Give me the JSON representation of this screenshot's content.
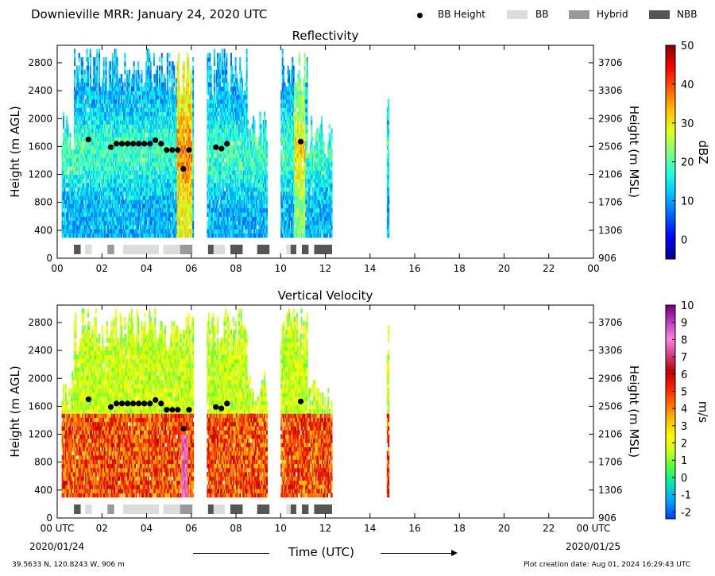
{
  "header": {
    "title": "Downieville MRR:  January 24, 2020 UTC",
    "legend": [
      {
        "label": "BB Height",
        "kind": "dot",
        "color": "#000000"
      },
      {
        "label": "BB",
        "kind": "box",
        "color": "#dcdcdc"
      },
      {
        "label": "Hybrid",
        "kind": "box",
        "color": "#999999"
      },
      {
        "label": "NBB",
        "kind": "box",
        "color": "#555555"
      }
    ]
  },
  "footer": {
    "coords": "39.5633 N, 120.8243 W, 906 m",
    "creation": "Plot creation date: Aug 01, 2024 16:29:43 UTC",
    "time_axis_label": "Time (UTC)",
    "start_date": "2020/01/24",
    "end_date": "2020/01/25"
  },
  "chart_data": [
    {
      "type": "heatmap",
      "title": "Reflectivity",
      "xlabel": "",
      "ylabel": "Height (m AGL)",
      "ylabel_right": "Height (m MSL)",
      "colorbar_label": "dBZ",
      "xlim": [
        0,
        24
      ],
      "ylim": [
        0,
        3050
      ],
      "x_ticks": [
        "00",
        "02",
        "04",
        "06",
        "08",
        "10",
        "12",
        "14",
        "16",
        "18",
        "20",
        "22",
        "00"
      ],
      "y_ticks": [
        0,
        400,
        800,
        1200,
        1600,
        2000,
        2400,
        2800
      ],
      "y_ticks_right": [
        906,
        1306,
        1706,
        2106,
        2506,
        2906,
        3306,
        3706
      ],
      "colorbar_range": [
        -5,
        50
      ],
      "colorbar_ticks": [
        0,
        10,
        20,
        30,
        40,
        50
      ],
      "colorbar_colors": [
        "#00008f",
        "#0000ff",
        "#0060ff",
        "#00c0ff",
        "#20ffdf",
        "#80ff80",
        "#dfff20",
        "#ffc000",
        "#ff6000",
        "#ff0000",
        "#8f0000"
      ],
      "bb_height_points": [
        [
          1.4,
          1700
        ],
        [
          2.4,
          1590
        ],
        [
          2.65,
          1640
        ],
        [
          2.9,
          1640
        ],
        [
          3.15,
          1640
        ],
        [
          3.4,
          1640
        ],
        [
          3.65,
          1640
        ],
        [
          3.9,
          1640
        ],
        [
          4.15,
          1640
        ],
        [
          4.4,
          1690
        ],
        [
          4.65,
          1640
        ],
        [
          4.9,
          1550
        ],
        [
          5.15,
          1550
        ],
        [
          5.4,
          1550
        ],
        [
          5.65,
          1280
        ],
        [
          5.9,
          1550
        ],
        [
          7.1,
          1590
        ],
        [
          7.35,
          1570
        ],
        [
          7.6,
          1640
        ],
        [
          10.9,
          1670
        ]
      ]
    },
    {
      "type": "heatmap",
      "title": "Vertical Velocity",
      "xlabel": "",
      "ylabel": "Height (m AGL)",
      "ylabel_right": "Height (m MSL)",
      "colorbar_label": "m/s",
      "xlim": [
        0,
        24
      ],
      "ylim": [
        0,
        3050
      ],
      "x_ticks": [
        "00 UTC",
        "02",
        "04",
        "06",
        "08",
        "10",
        "12",
        "14",
        "16",
        "18",
        "20",
        "22",
        "00 UTC"
      ],
      "y_ticks": [
        0,
        400,
        800,
        1200,
        1600,
        2000,
        2400,
        2800
      ],
      "y_ticks_right": [
        906,
        1306,
        1706,
        2106,
        2506,
        2906,
        3306,
        3706
      ],
      "colorbar_range": [
        -2.4,
        10
      ],
      "colorbar_ticks": [
        -2,
        -1,
        0,
        1,
        2,
        3,
        4,
        5,
        6,
        7,
        8,
        9,
        10
      ],
      "colorbar_colors": [
        "#0040ff",
        "#00a0ff",
        "#00e0c0",
        "#40ff40",
        "#c0ff20",
        "#ffff00",
        "#ffc000",
        "#ff7000",
        "#ff2000",
        "#c00000",
        "#d04080",
        "#ff80e0",
        "#c040c0",
        "#800080"
      ],
      "bb_height_points": [
        [
          1.4,
          1700
        ],
        [
          2.4,
          1590
        ],
        [
          2.65,
          1640
        ],
        [
          2.9,
          1640
        ],
        [
          3.15,
          1640
        ],
        [
          3.4,
          1640
        ],
        [
          3.65,
          1640
        ],
        [
          3.9,
          1640
        ],
        [
          4.15,
          1640
        ],
        [
          4.4,
          1690
        ],
        [
          4.65,
          1640
        ],
        [
          4.9,
          1550
        ],
        [
          5.15,
          1550
        ],
        [
          5.4,
          1550
        ],
        [
          5.65,
          1280
        ],
        [
          5.9,
          1550
        ],
        [
          7.1,
          1590
        ],
        [
          7.35,
          1570
        ],
        [
          7.6,
          1640
        ],
        [
          10.9,
          1670
        ]
      ]
    }
  ],
  "bb_category_blocks": [
    {
      "start": 0.75,
      "end": 1.05,
      "type": "NBB"
    },
    {
      "start": 1.25,
      "end": 1.55,
      "type": "BB"
    },
    {
      "start": 2.25,
      "end": 2.55,
      "type": "Hybrid"
    },
    {
      "start": 2.95,
      "end": 4.55,
      "type": "BB"
    },
    {
      "start": 4.75,
      "end": 5.5,
      "type": "BB"
    },
    {
      "start": 5.5,
      "end": 6.05,
      "type": "Hybrid"
    },
    {
      "start": 6.75,
      "end": 7.0,
      "type": "NBB"
    },
    {
      "start": 7.0,
      "end": 7.5,
      "type": "BB"
    },
    {
      "start": 7.75,
      "end": 8.3,
      "type": "NBB"
    },
    {
      "start": 8.95,
      "end": 9.5,
      "type": "NBB"
    },
    {
      "start": 10.25,
      "end": 10.45,
      "type": "BB"
    },
    {
      "start": 10.45,
      "end": 10.7,
      "type": "NBB"
    },
    {
      "start": 10.95,
      "end": 11.25,
      "type": "NBB"
    },
    {
      "start": 11.5,
      "end": 12.3,
      "type": "NBB"
    }
  ]
}
